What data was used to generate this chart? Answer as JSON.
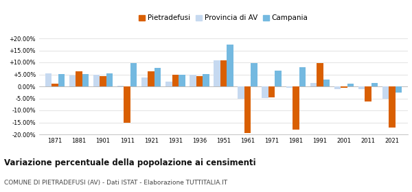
{
  "years": [
    1871,
    1881,
    1901,
    1911,
    1921,
    1931,
    1936,
    1951,
    1961,
    1971,
    1981,
    1991,
    2001,
    2011,
    2021
  ],
  "pietradefusi": [
    1.2,
    6.2,
    4.2,
    -15.0,
    6.2,
    4.8,
    4.2,
    10.8,
    -19.5,
    -4.5,
    -18.0,
    9.8,
    -0.5,
    -6.2,
    -17.0
  ],
  "provincia_av": [
    5.5,
    4.5,
    4.8,
    0.3,
    3.8,
    2.0,
    5.0,
    11.0,
    -5.2,
    -4.8,
    -0.5,
    1.5,
    -1.0,
    -1.0,
    -5.0
  ],
  "campania": [
    5.2,
    5.2,
    5.5,
    9.8,
    7.8,
    5.0,
    5.2,
    17.5,
    9.8,
    6.5,
    8.0,
    3.0,
    1.2,
    1.5,
    -2.5
  ],
  "color_pietradefusi": "#d95f02",
  "color_provincia": "#c6d9f0",
  "color_campania": "#74b9e0",
  "title": "Variazione percentuale della popolazione ai censimenti",
  "subtitle": "COMUNE DI PIETRADEFUSI (AV) - Dati ISTAT - Elaborazione TUTTITALIA.IT",
  "ylim": [
    -20.0,
    20.0
  ],
  "yticks": [
    -20.0,
    -15.0,
    -10.0,
    -5.0,
    0.0,
    5.0,
    10.0,
    15.0,
    20.0
  ],
  "bar_width": 0.27,
  "background_color": "#ffffff",
  "grid_color": "#dddddd"
}
